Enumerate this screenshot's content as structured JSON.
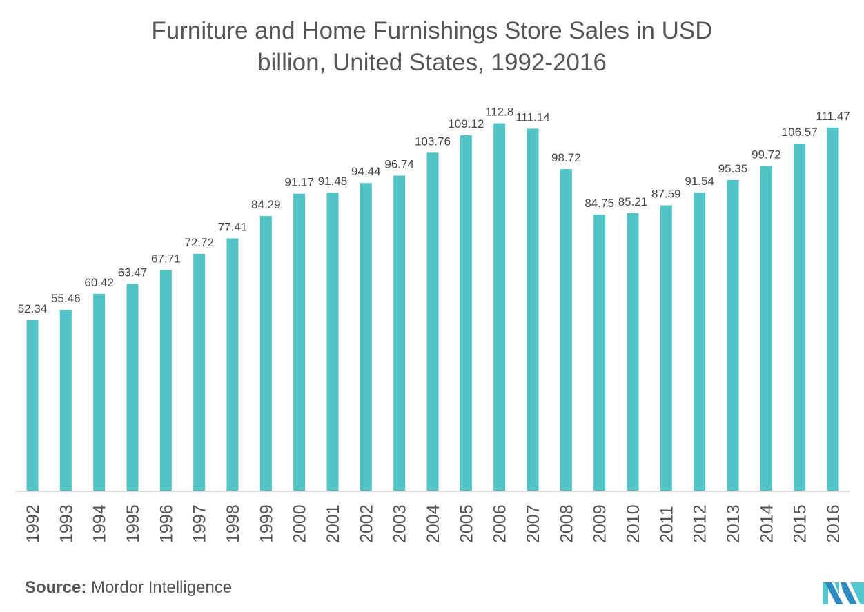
{
  "chart_data": {
    "type": "bar",
    "title_line1": "Furniture and Home Furnishings Store Sales in USD",
    "title_line2": "billion, United States, 1992-2016",
    "xlabel": "",
    "ylabel": "",
    "ylim": [
      0,
      150
    ],
    "grid": false,
    "categories": [
      "1992",
      "1993",
      "1994",
      "1995",
      "1996",
      "1997",
      "1998",
      "1999",
      "2000",
      "2001",
      "2002",
      "2003",
      "2004",
      "2005",
      "2006",
      "2007",
      "2008",
      "2009",
      "2010",
      "2011",
      "2012",
      "2013",
      "2014",
      "2015",
      "2016"
    ],
    "values": [
      52.34,
      55.46,
      60.42,
      63.47,
      67.71,
      72.72,
      77.41,
      84.29,
      91.17,
      91.48,
      94.44,
      96.74,
      103.76,
      109.12,
      112.8,
      111.14,
      98.72,
      84.75,
      85.21,
      87.59,
      91.54,
      95.35,
      99.72,
      106.57,
      111.47
    ],
    "labels": [
      "52.34",
      "55.46",
      "60.42",
      "63.47",
      "67.71",
      "72.72",
      "77.41",
      "84.29",
      "91.17",
      "91.48",
      "94.44",
      "96.74",
      "103.76",
      "109.12",
      "112.8",
      "111.14",
      "98.72",
      "84.75",
      "85.21",
      "87.59",
      "91.54",
      "95.35",
      "99.72",
      "106.57",
      "111.47"
    ],
    "bar_color": "#52c3c6"
  },
  "source": {
    "label": "Source:",
    "text": "Mordor Intelligence"
  },
  "logo": {
    "name": "Mordor Intelligence logo",
    "colors": [
      "#2e8bc0",
      "#52c8cc"
    ]
  }
}
